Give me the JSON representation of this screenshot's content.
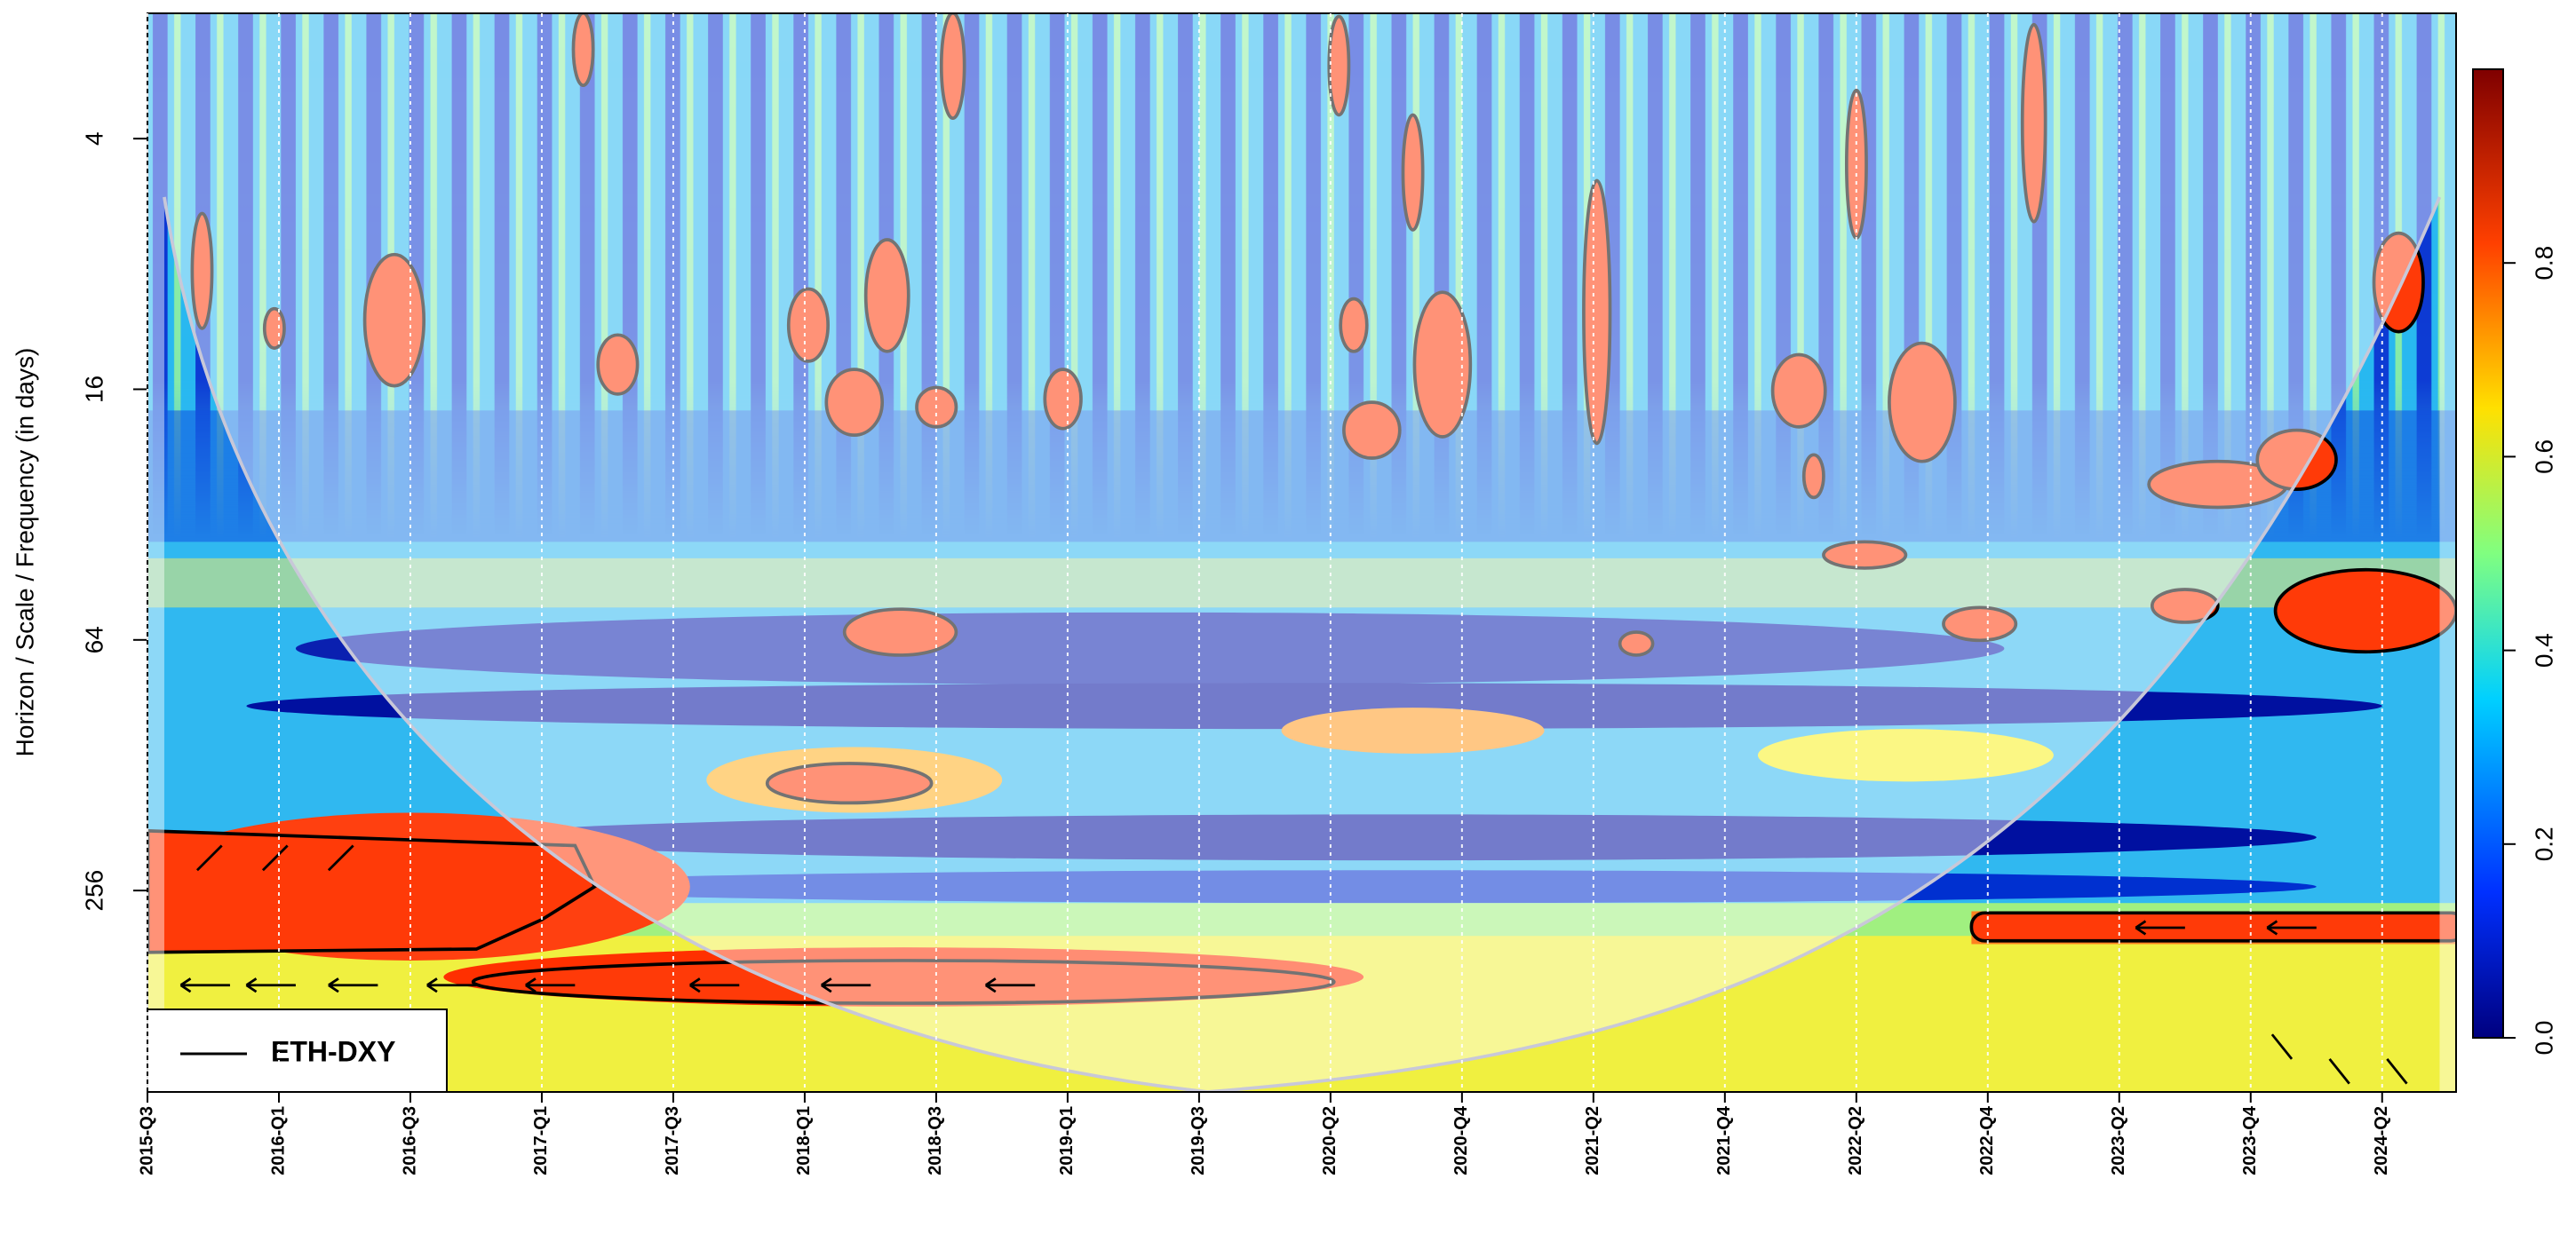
{
  "chart_data": {
    "type": "wavelet-coherence",
    "y_label": "Horizon / Scale / Frequency (in days)",
    "categories": [
      "2015-Q3",
      "2016-Q1",
      "2016-Q3",
      "2017-Q1",
      "2017-Q3",
      "2018-Q1",
      "2018-Q3",
      "2019-Q1",
      "2019-Q3",
      "2020-Q2",
      "2020-Q4",
      "2021-Q2",
      "2021-Q4",
      "2022-Q2",
      "2022-Q4",
      "2023-Q2",
      "2023-Q4",
      "2024-Q2"
    ],
    "ylim": [
      2,
      780
    ],
    "yticks": [
      4,
      16,
      64,
      256
    ],
    "y_scale": "log",
    "y_inverted": true,
    "x_grid": true,
    "series": [
      {
        "name": "ETH-DXY",
        "color": "#000000"
      }
    ],
    "legend_position": "bottom-left",
    "colorbar": {
      "lim": [
        0,
        1
      ],
      "ticks": [
        {
          "value": 0,
          "label": "0.0"
        },
        {
          "value": 0.2,
          "label": "0.2"
        },
        {
          "value": 0.4,
          "label": "0.4"
        },
        {
          "value": 0.6,
          "label": "0.6"
        },
        {
          "value": 0.8,
          "label": "0.8"
        }
      ]
    }
  }
}
